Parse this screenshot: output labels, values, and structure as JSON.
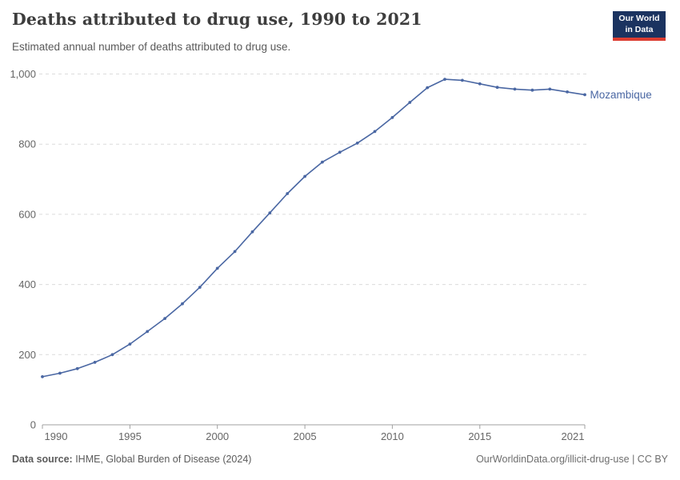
{
  "header": {
    "title": "Deaths attributed to drug use, 1990 to 2021",
    "subtitle": "Estimated annual number of deaths attributed to drug use.",
    "logo": {
      "line1": "Our World",
      "line2": "in Data"
    }
  },
  "chart_data": {
    "type": "line",
    "title": "Deaths attributed to drug use, 1990 to 2021",
    "xlabel": "",
    "ylabel": "",
    "xlim": [
      1990,
      2021
    ],
    "ylim": [
      0,
      1000
    ],
    "grid": "horizontal-dashed",
    "legend_position": "end-of-line-label",
    "x_ticks": [
      1990,
      1995,
      2000,
      2005,
      2010,
      2015,
      2021
    ],
    "y_ticks": [
      0,
      200,
      400,
      600,
      800,
      1000
    ],
    "y_tick_labels": [
      "0",
      "200",
      "400",
      "600",
      "800",
      "1,000"
    ],
    "series": [
      {
        "name": "Mozambique",
        "color": "#4a67a3",
        "x": [
          1990,
          1991,
          1992,
          1993,
          1994,
          1995,
          1996,
          1997,
          1998,
          1999,
          2000,
          2001,
          2002,
          2003,
          2004,
          2005,
          2006,
          2007,
          2008,
          2009,
          2010,
          2011,
          2012,
          2013,
          2014,
          2015,
          2016,
          2017,
          2018,
          2019,
          2020,
          2021
        ],
        "values": [
          137,
          147,
          160,
          178,
          200,
          230,
          266,
          303,
          345,
          392,
          446,
          494,
          550,
          604,
          659,
          708,
          749,
          777,
          803,
          836,
          876,
          919,
          961,
          985,
          982,
          972,
          962,
          957,
          954,
          957,
          949,
          941
        ]
      }
    ]
  },
  "colors": {
    "line": "#4a67a3",
    "grid": "#dcdcdc",
    "axis": "#a0a0a0",
    "tick_text": "#666666",
    "logo_bg": "#1b3360",
    "logo_accent": "#dc3c31"
  },
  "footer": {
    "source_label": "Data source:",
    "source_text": " IHME, Global Burden of Disease (2024)",
    "link_text": "OurWorldinData.org/illicit-drug-use",
    "license_text": " | CC BY"
  }
}
